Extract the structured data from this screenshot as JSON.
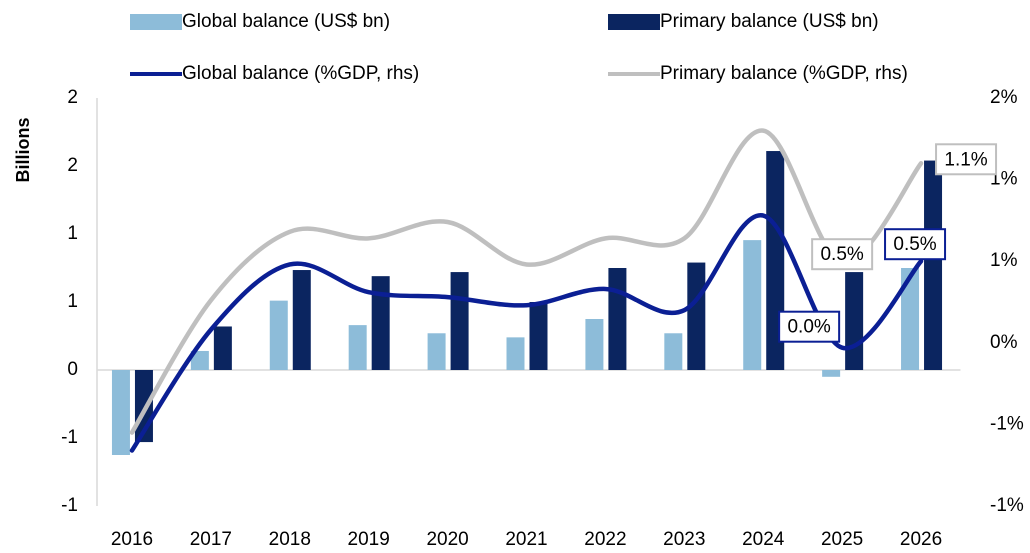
{
  "chart_data": {
    "type": "bar",
    "y_label": "Billions",
    "categories": [
      "2016",
      "2017",
      "2018",
      "2019",
      "2020",
      "2021",
      "2022",
      "2023",
      "2024",
      "2025",
      "2026"
    ],
    "series": [
      {
        "name": "Global balance (US$ bn)",
        "type": "bar",
        "color": "#8dbcd9",
        "values": [
          -0.625,
          0.14,
          0.51,
          0.33,
          0.27,
          0.24,
          0.375,
          0.27,
          0.955,
          -0.05,
          0.75
        ]
      },
      {
        "name": "Primary balance (US$ bn)",
        "type": "bar",
        "color": "#0b2560",
        "values": [
          -0.53,
          0.32,
          0.735,
          0.69,
          0.72,
          0.5,
          0.75,
          0.79,
          1.61,
          0.72,
          1.54
        ]
      },
      {
        "name": "Global balance (%GDP, rhs)",
        "type": "line",
        "axis": "y2",
        "color": "#0b1f94",
        "values": [
          -0.66,
          0.08,
          0.48,
          0.31,
          0.28,
          0.23,
          0.33,
          0.2,
          0.78,
          -0.03,
          0.5
        ],
        "value_labels": [
          null,
          null,
          null,
          null,
          null,
          null,
          null,
          null,
          null,
          "0.0%",
          "0.5%"
        ]
      },
      {
        "name": "Primary balance (%GDP, rhs)",
        "type": "line",
        "axis": "y2",
        "color": "#bfbfbf",
        "values": [
          -0.55,
          0.26,
          0.68,
          0.64,
          0.74,
          0.48,
          0.64,
          0.64,
          1.3,
          0.5,
          1.1
        ],
        "value_labels": [
          null,
          null,
          null,
          null,
          null,
          null,
          null,
          null,
          null,
          "0.5%",
          "1.1%"
        ]
      }
    ],
    "ylim": [
      -1,
      2
    ],
    "yticks": [
      -1,
      {
        "value": -0.5,
        "label": "-1"
      },
      0,
      {
        "value": 0.5,
        "label": "1"
      },
      1,
      {
        "value": 1.5,
        "label": "2"
      },
      2
    ],
    "y2lim": [
      -1,
      1.5
    ],
    "y2ticks": [
      {
        "value": -1,
        "label": "-1%"
      },
      {
        "value": -0.5,
        "label": "-1%"
      },
      {
        "value": 0,
        "label": "0%"
      },
      {
        "value": 0.5,
        "label": "1%"
      },
      {
        "value": 1,
        "label": "1%"
      },
      {
        "value": 1.5,
        "label": "2%"
      }
    ],
    "legend": "top"
  }
}
